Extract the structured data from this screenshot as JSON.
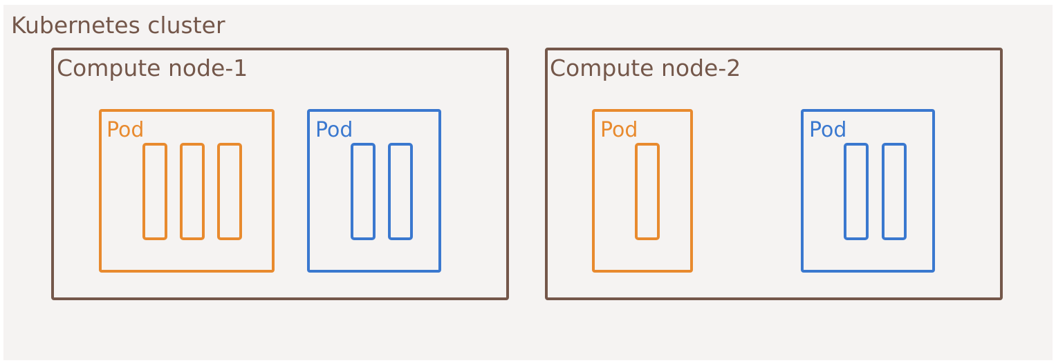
{
  "cluster": {
    "title": "Kubernetes cluster",
    "nodes": [
      {
        "title": "Compute node-1",
        "pods": [
          {
            "title": "Pod",
            "color": "#e88a2e",
            "containers": 3
          },
          {
            "title": "Pod",
            "color": "#3a78cf",
            "containers": 2
          }
        ]
      },
      {
        "title": "Compute node-2",
        "pods": [
          {
            "title": "Pod",
            "color": "#e88a2e",
            "containers": 1
          },
          {
            "title": "Pod",
            "color": "#3a78cf",
            "containers": 2
          }
        ]
      }
    ]
  },
  "colors": {
    "background": "#f5f3f2",
    "cluster_border": "#74574a",
    "pod_orange": "#e88a2e",
    "pod_blue": "#3a78cf"
  }
}
